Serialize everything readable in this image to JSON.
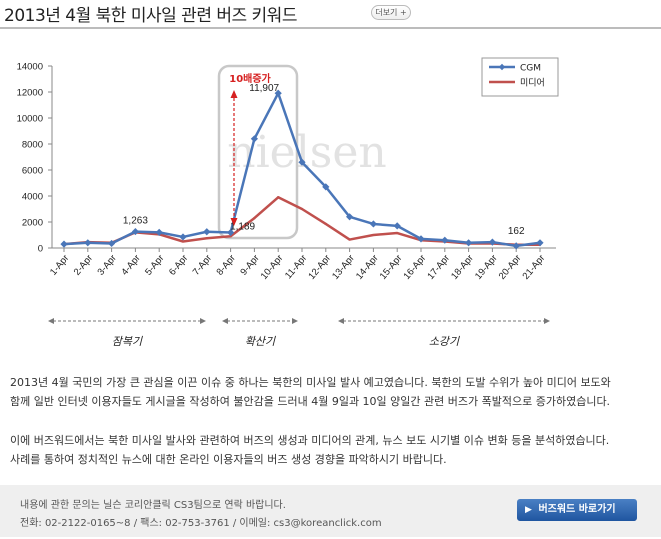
{
  "header": {
    "title": "2013년 4월 북한 미사일 관련 버즈 키워드",
    "more_label": "더보기 +"
  },
  "chart_data": {
    "type": "line",
    "categories": [
      "1-Apr",
      "2-Apr",
      "3-Apr",
      "4-Apr",
      "5-Apr",
      "6-Apr",
      "7-Apr",
      "8-Apr",
      "9-Apr",
      "10-Apr",
      "11-Apr",
      "12-Apr",
      "13-Apr",
      "14-Apr",
      "15-Apr",
      "16-Apr",
      "17-Apr",
      "18-Apr",
      "19-Apr",
      "20-Apr",
      "21-Apr"
    ],
    "series": [
      {
        "name": "CGM",
        "color": "#4a76b8",
        "values": [
          300,
          400,
          350,
          1263,
          1200,
          850,
          1250,
          1189,
          8400,
          11907,
          6600,
          4700,
          2400,
          1850,
          1700,
          700,
          600,
          400,
          450,
          162,
          400
        ]
      },
      {
        "name": "미디어",
        "color": "#c0504d",
        "values": [
          300,
          450,
          400,
          1200,
          1050,
          500,
          750,
          900,
          2300,
          3900,
          3000,
          1850,
          650,
          1000,
          1150,
          600,
          500,
          350,
          350,
          250,
          250
        ]
      }
    ],
    "ylim": [
      0,
      14000
    ],
    "yticks": [
      0,
      2000,
      4000,
      6000,
      8000,
      10000,
      12000,
      14000
    ],
    "ytick_labels": [
      "0",
      "2000",
      "4000",
      "6000",
      "8000",
      "10000",
      "12000",
      "14000"
    ],
    "data_labels": [
      {
        "text": "1,263",
        "series": "CGM",
        "category": "4-Apr"
      },
      {
        "text": "11,907",
        "series": "CGM",
        "category": "10-Apr"
      },
      {
        "text": "1,189",
        "series": "CGM",
        "category": "8-Apr"
      },
      {
        "text": "162",
        "series": "CGM",
        "category": "20-Apr"
      }
    ],
    "annotation": {
      "text": "10배증가",
      "color": "#d62020"
    },
    "watermark": "nielsen",
    "legend_placement": "top-right",
    "phases": [
      {
        "label": "잠복기",
        "from": "1-Apr",
        "to": "7-Apr"
      },
      {
        "label": "확산기",
        "from": "8-Apr",
        "to": "11-Apr"
      },
      {
        "label": "소강기",
        "from": "12-Apr",
        "to": "21-Apr"
      }
    ]
  },
  "description": {
    "para1_line1": "2013년 4월 국민의 가장 큰 관심을 이끈 이슈 중 하나는 북한의 미사일 발사 예고였습니다. 북한의 도발 수위가 높아 미디어 보도와",
    "para1_line2": "함께 일반 인터넷 이용자들도 게시글을 작성하여 불안감을 드러내 4월 9일과 10일 양일간 관련 버즈가 폭발적으로 증가하였습니다.",
    "para2_line1": "이에 버즈워드에서는 북한 미사일 발사와 관련하여 버즈의 생성과 미디어의 관계, 뉴스 보도 시기별 이슈 변화 등을 분석하였습니다.",
    "para2_line2": "사례를 통하여 정치적인 뉴스에 대한 온라인 이용자들의 버즈 생성 경향을 파악하시기 바랍니다."
  },
  "footer": {
    "line1": "내용에 관한 문의는 닐슨 코리안클릭 CS3팀으로 연락 바랍니다.",
    "line2": "전화: 02-2122-0165~8 / 팩스: 02-753-3761 / 이메일: cs3@koreanclick.com",
    "button_label": "버즈워드 바로가기"
  }
}
